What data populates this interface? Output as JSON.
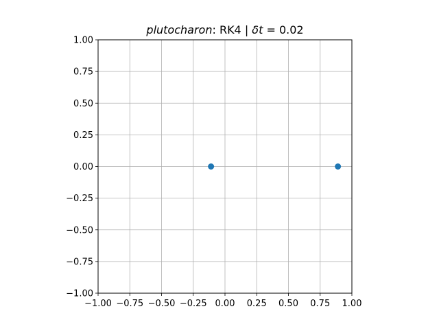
{
  "chart_data": {
    "type": "scatter",
    "title": {
      "italic": "plutocharon",
      "rest": ": RK4 | ",
      "delta": "δ",
      "dt": "t",
      "eq": " = 0.02"
    },
    "xlabel": "",
    "ylabel": "",
    "xlim": [
      -1.0,
      1.0
    ],
    "ylim": [
      -1.0,
      1.0
    ],
    "xticks": [
      "−1.00",
      "−0.75",
      "−0.50",
      "−0.25",
      "0.00",
      "0.25",
      "0.50",
      "0.75",
      "1.00"
    ],
    "yticks": [
      "1.00",
      "0.75",
      "0.50",
      "0.25",
      "0.00",
      "−0.25",
      "−0.50",
      "−0.75",
      "−1.00"
    ],
    "xtick_values": [
      -1.0,
      -0.75,
      -0.5,
      -0.25,
      0.0,
      0.25,
      0.5,
      0.75,
      1.0
    ],
    "ytick_values": [
      1.0,
      0.75,
      0.5,
      0.25,
      0.0,
      -0.25,
      -0.5,
      -0.75,
      -1.0
    ],
    "grid": true,
    "points": [
      {
        "x": -0.11,
        "y": 0.0
      },
      {
        "x": 0.89,
        "y": 0.0
      }
    ],
    "color": "#1f77b4"
  }
}
